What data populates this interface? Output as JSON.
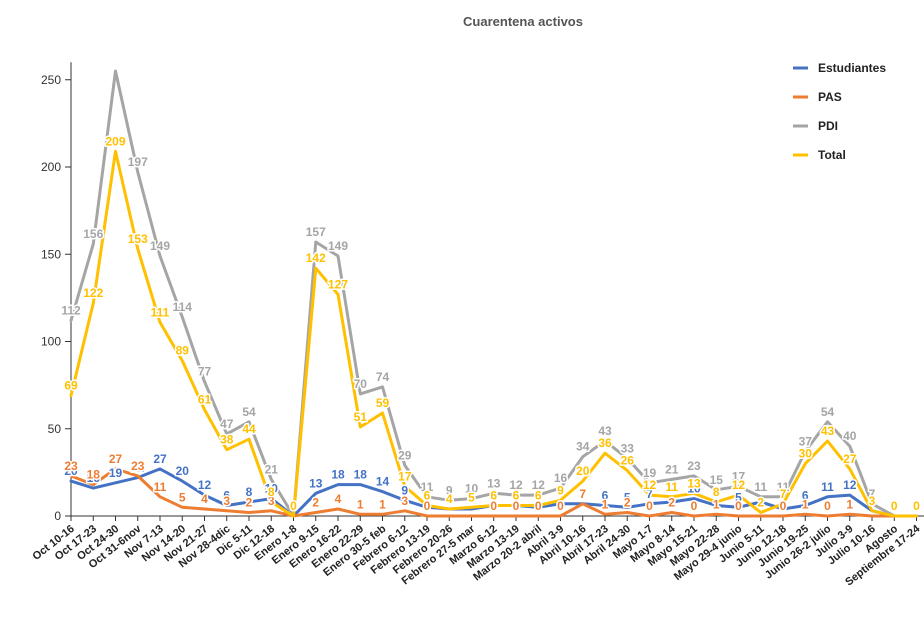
{
  "chart_data": {
    "type": "line",
    "title": "Cuarentena activos",
    "xlabel": "",
    "ylabel": "",
    "ylim": [
      0,
      260
    ],
    "yticks": [
      0,
      50,
      100,
      150,
      200,
      250
    ],
    "grid": false,
    "legend_position": "top-right",
    "categories": [
      "Oct 10-16",
      "Oct 17-23",
      "Oct 24-30",
      "Oct 31-6nov",
      "Nov 7-13",
      "Nov 14-20",
      "Nov 21-27",
      "Nov 28-4dic",
      "Dic 5-11",
      "Dic 12-18",
      "Enero 1-8",
      "Enero 9-15",
      "Enero 16-22",
      "Enero 22-29",
      "Enero 30-5 feb",
      "Febrero 6-12",
      "Febrero 13-19",
      "Febrero 20-26",
      "Febrero 27-5 mar",
      "Marzo 6-12",
      "Marzo 13-19",
      "Marzo 20-2 abril",
      "Abril 3-9",
      "Abril 10-16",
      "Abril 17-23",
      "Abril 24-30",
      "Mayo 1-7",
      "Mayo 8-14",
      "Mayo 15-21",
      "Mayo 22-28",
      "Mayo 29-4 junio",
      "Junio 5-11",
      "Junio 12-18",
      "Junio 19-25",
      "Junio 26-2 julio",
      "Julio 3-9",
      "Julio 10-16",
      "Agosto",
      "Septiembre 17-24"
    ],
    "series": [
      {
        "name": "Estudiantes",
        "color": "#4472c4",
        "values": [
          20,
          16,
          19,
          22,
          27,
          20,
          12,
          6,
          8,
          10,
          0,
          13,
          18,
          18,
          14,
          9,
          5,
          4,
          4,
          6,
          6,
          5,
          7,
          7,
          6,
          5,
          7,
          8,
          10,
          6,
          5,
          8,
          4,
          6,
          11,
          12,
          3,
          0,
          0
        ],
        "labels": [
          20,
          16,
          19,
          22,
          27,
          20,
          12,
          6,
          8,
          10,
          null,
          13,
          18,
          18,
          14,
          9,
          null,
          null,
          null,
          null,
          null,
          null,
          null,
          null,
          6,
          5,
          7,
          null,
          10,
          null,
          5,
          null,
          null,
          6,
          11,
          12,
          null,
          null,
          null
        ]
      },
      {
        "name": "PAS",
        "color": "#ed7d31",
        "values": [
          23,
          18,
          27,
          23,
          11,
          5,
          4,
          3,
          2,
          3,
          0,
          2,
          4,
          1,
          1,
          3,
          0,
          0,
          0,
          0,
          0,
          0,
          0,
          7,
          1,
          2,
          0,
          2,
          0,
          1,
          0,
          0,
          0,
          1,
          0,
          1,
          0,
          0,
          0
        ],
        "labels": [
          23,
          18,
          27,
          23,
          11,
          5,
          4,
          3,
          2,
          3,
          null,
          2,
          4,
          1,
          1,
          3,
          0,
          null,
          null,
          0,
          0,
          0,
          0,
          7,
          1,
          2,
          0,
          2,
          0,
          1,
          0,
          null,
          0,
          1,
          0,
          1,
          null,
          null,
          null
        ]
      },
      {
        "name": "PDI",
        "color": "#a5a5a5",
        "values": [
          112,
          156,
          255,
          197,
          149,
          114,
          77,
          47,
          54,
          21,
          0,
          157,
          149,
          70,
          74,
          29,
          11,
          9,
          10,
          13,
          12,
          12,
          16,
          34,
          43,
          33,
          19,
          21,
          23,
          15,
          17,
          11,
          11,
          37,
          54,
          40,
          7,
          0,
          0
        ],
        "labels": [
          112,
          156,
          null,
          197,
          149,
          114,
          77,
          47,
          54,
          21,
          null,
          157,
          149,
          70,
          74,
          29,
          11,
          9,
          10,
          13,
          12,
          12,
          16,
          34,
          43,
          33,
          19,
          21,
          23,
          15,
          17,
          11,
          11,
          37,
          54,
          40,
          7,
          null,
          null
        ]
      },
      {
        "name": "Total",
        "color": "#ffc000",
        "values": [
          69,
          122,
          209,
          153,
          111,
          89,
          61,
          38,
          44,
          8,
          0,
          142,
          127,
          51,
          59,
          17,
          6,
          4,
          5,
          6,
          6,
          6,
          9,
          20,
          36,
          26,
          12,
          11,
          13,
          8,
          12,
          2,
          7,
          30,
          43,
          27,
          3,
          0,
          0
        ],
        "labels": [
          69,
          122,
          209,
          153,
          111,
          89,
          61,
          38,
          44,
          8,
          0,
          142,
          127,
          51,
          59,
          17,
          6,
          4,
          5,
          6,
          6,
          6,
          9,
          20,
          36,
          26,
          12,
          11,
          13,
          8,
          12,
          2,
          7,
          30,
          43,
          27,
          3,
          0,
          0
        ]
      }
    ]
  }
}
